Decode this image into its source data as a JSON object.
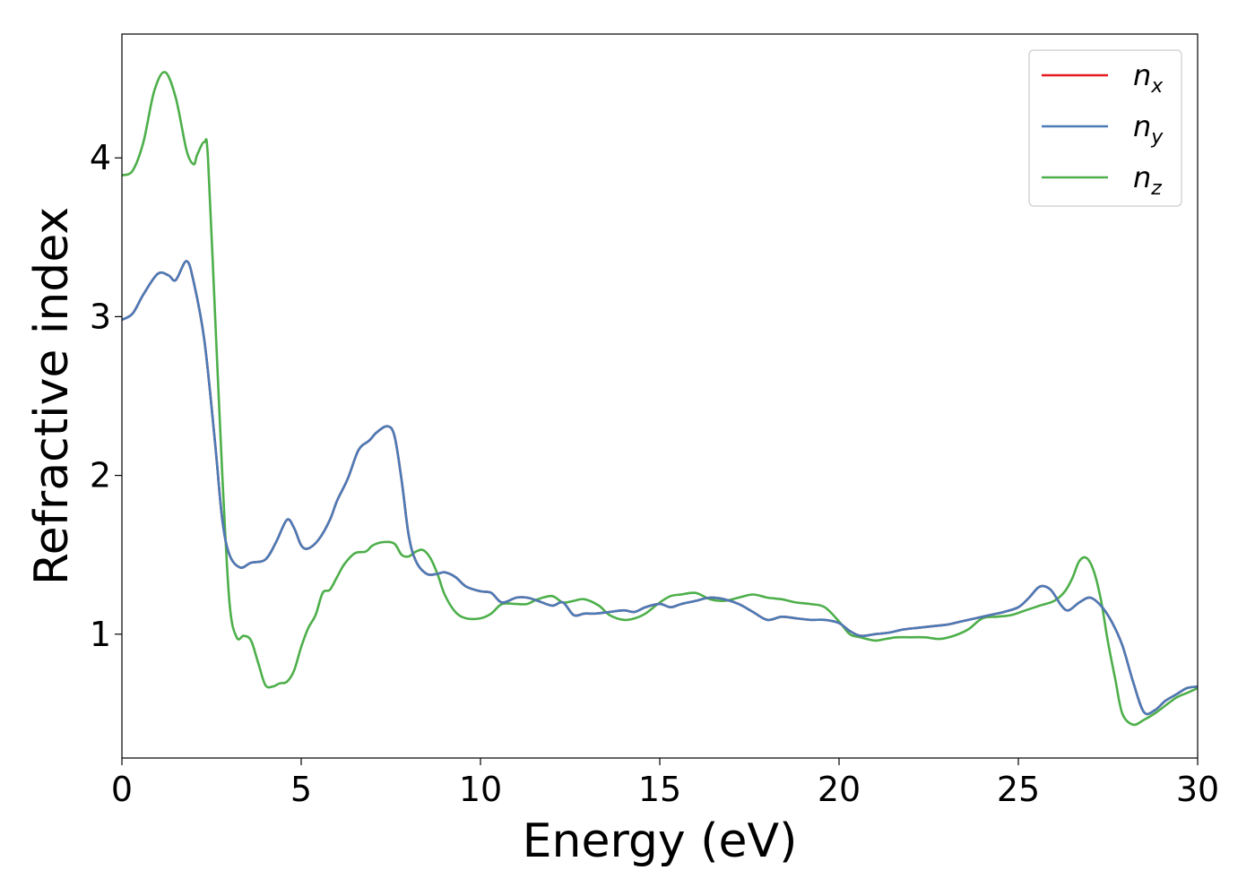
{
  "chart_data": {
    "type": "line",
    "xlabel": "Energy (eV)",
    "ylabel": "Refractive index",
    "xlim": [
      0,
      30
    ],
    "ylim": [
      0.22,
      4.78
    ],
    "xticks": [
      0,
      5,
      10,
      15,
      20,
      25,
      30
    ],
    "yticks": [
      1,
      2,
      3,
      4
    ],
    "grid": false,
    "legend_position": "top-right",
    "series": [
      {
        "name": "n_x",
        "label_main": "n",
        "label_sub": "x",
        "color": "#e41a1c",
        "x": [
          0,
          0.3,
          0.6,
          1.0,
          1.3,
          1.5,
          1.8,
          2.0,
          2.3,
          2.6,
          2.8,
          3.0,
          3.3,
          3.6,
          4.0,
          4.3,
          4.6,
          4.8,
          5.0,
          5.2,
          5.5,
          5.8,
          6.0,
          6.3,
          6.6,
          6.9,
          7.1,
          7.4,
          7.6,
          7.8,
          8.0,
          8.2,
          8.5,
          8.8,
          9.0,
          9.3,
          9.6,
          10.0,
          10.3,
          10.6,
          11.0,
          11.3,
          11.6,
          12.0,
          12.3,
          12.6,
          12.9,
          13.2,
          13.6,
          14.0,
          14.3,
          14.6,
          15.0,
          15.3,
          15.6,
          16.0,
          16.4,
          16.8,
          17.2,
          17.6,
          18.0,
          18.4,
          18.8,
          19.2,
          19.6,
          20.0,
          20.3,
          20.6,
          21.0,
          21.4,
          21.8,
          22.2,
          22.6,
          23.0,
          23.4,
          23.8,
          24.2,
          24.6,
          25.0,
          25.3,
          25.6,
          25.9,
          26.2,
          26.4,
          26.7,
          27.0,
          27.3,
          27.6,
          27.9,
          28.2,
          28.5,
          28.8,
          29.1,
          29.4,
          29.7,
          30.0
        ],
        "y": [
          2.98,
          3.02,
          3.14,
          3.27,
          3.26,
          3.23,
          3.35,
          3.22,
          2.85,
          2.2,
          1.72,
          1.5,
          1.42,
          1.45,
          1.47,
          1.58,
          1.72,
          1.67,
          1.56,
          1.54,
          1.6,
          1.72,
          1.84,
          1.98,
          2.16,
          2.22,
          2.27,
          2.31,
          2.25,
          1.97,
          1.62,
          1.46,
          1.38,
          1.38,
          1.39,
          1.36,
          1.3,
          1.27,
          1.26,
          1.2,
          1.23,
          1.23,
          1.21,
          1.18,
          1.2,
          1.12,
          1.13,
          1.13,
          1.14,
          1.15,
          1.14,
          1.17,
          1.19,
          1.17,
          1.19,
          1.21,
          1.23,
          1.22,
          1.19,
          1.14,
          1.09,
          1.11,
          1.1,
          1.09,
          1.09,
          1.07,
          1.02,
          0.99,
          1.0,
          1.01,
          1.03,
          1.04,
          1.05,
          1.06,
          1.08,
          1.1,
          1.12,
          1.14,
          1.17,
          1.23,
          1.3,
          1.28,
          1.18,
          1.15,
          1.2,
          1.23,
          1.18,
          1.08,
          0.93,
          0.7,
          0.51,
          0.52,
          0.58,
          0.62,
          0.66,
          0.67
        ]
      },
      {
        "name": "n_y",
        "label_main": "n",
        "label_sub": "y",
        "color": "#4a7bb7",
        "x": [
          0,
          0.3,
          0.6,
          1.0,
          1.3,
          1.5,
          1.8,
          2.0,
          2.3,
          2.6,
          2.8,
          3.0,
          3.3,
          3.6,
          4.0,
          4.3,
          4.6,
          4.8,
          5.0,
          5.2,
          5.5,
          5.8,
          6.0,
          6.3,
          6.6,
          6.9,
          7.1,
          7.4,
          7.6,
          7.8,
          8.0,
          8.2,
          8.5,
          8.8,
          9.0,
          9.3,
          9.6,
          10.0,
          10.3,
          10.6,
          11.0,
          11.3,
          11.6,
          12.0,
          12.3,
          12.6,
          12.9,
          13.2,
          13.6,
          14.0,
          14.3,
          14.6,
          15.0,
          15.3,
          15.6,
          16.0,
          16.4,
          16.8,
          17.2,
          17.6,
          18.0,
          18.4,
          18.8,
          19.2,
          19.6,
          20.0,
          20.3,
          20.6,
          21.0,
          21.4,
          21.8,
          22.2,
          22.6,
          23.0,
          23.4,
          23.8,
          24.2,
          24.6,
          25.0,
          25.3,
          25.6,
          25.9,
          26.2,
          26.4,
          26.7,
          27.0,
          27.3,
          27.6,
          27.9,
          28.2,
          28.5,
          28.8,
          29.1,
          29.4,
          29.7,
          30.0
        ],
        "y": [
          2.98,
          3.02,
          3.14,
          3.27,
          3.26,
          3.23,
          3.35,
          3.22,
          2.85,
          2.2,
          1.72,
          1.5,
          1.42,
          1.45,
          1.47,
          1.58,
          1.72,
          1.67,
          1.56,
          1.54,
          1.6,
          1.72,
          1.84,
          1.98,
          2.16,
          2.22,
          2.27,
          2.31,
          2.25,
          1.97,
          1.62,
          1.46,
          1.38,
          1.38,
          1.39,
          1.36,
          1.3,
          1.27,
          1.26,
          1.2,
          1.23,
          1.23,
          1.21,
          1.18,
          1.2,
          1.12,
          1.13,
          1.13,
          1.14,
          1.15,
          1.14,
          1.17,
          1.19,
          1.17,
          1.19,
          1.21,
          1.23,
          1.22,
          1.19,
          1.14,
          1.09,
          1.11,
          1.1,
          1.09,
          1.09,
          1.07,
          1.02,
          0.99,
          1.0,
          1.01,
          1.03,
          1.04,
          1.05,
          1.06,
          1.08,
          1.1,
          1.12,
          1.14,
          1.17,
          1.23,
          1.3,
          1.28,
          1.18,
          1.15,
          1.2,
          1.23,
          1.18,
          1.08,
          0.93,
          0.7,
          0.51,
          0.52,
          0.58,
          0.62,
          0.66,
          0.67
        ]
      },
      {
        "name": "n_z",
        "label_main": "n",
        "label_sub": "z",
        "color": "#4daf4a",
        "x": [
          0,
          0.3,
          0.6,
          0.9,
          1.2,
          1.5,
          1.8,
          2.0,
          2.1,
          2.3,
          2.4,
          2.6,
          2.8,
          3.0,
          3.2,
          3.4,
          3.6,
          3.8,
          4.0,
          4.2,
          4.4,
          4.6,
          4.8,
          5.0,
          5.2,
          5.4,
          5.6,
          5.8,
          6.0,
          6.2,
          6.5,
          6.8,
          7.0,
          7.3,
          7.6,
          7.8,
          8.0,
          8.2,
          8.4,
          8.6,
          8.8,
          9.0,
          9.3,
          9.6,
          10.0,
          10.3,
          10.6,
          11.0,
          11.3,
          11.6,
          12.0,
          12.3,
          12.6,
          12.9,
          13.3,
          13.6,
          14.0,
          14.3,
          14.6,
          15.0,
          15.3,
          15.6,
          16.0,
          16.4,
          16.8,
          17.2,
          17.6,
          18.0,
          18.4,
          18.8,
          19.2,
          19.6,
          20.0,
          20.3,
          20.6,
          21.0,
          21.3,
          21.6,
          22.0,
          22.4,
          22.8,
          23.2,
          23.6,
          24.0,
          24.4,
          24.8,
          25.2,
          25.6,
          26.0,
          26.3,
          26.5,
          26.7,
          26.9,
          27.1,
          27.3,
          27.5,
          27.7,
          27.9,
          28.2,
          28.5,
          28.8,
          29.1,
          29.4,
          29.7,
          30.0
        ],
        "y": [
          3.89,
          3.92,
          4.1,
          4.42,
          4.54,
          4.38,
          4.05,
          3.96,
          4.02,
          4.1,
          4.0,
          3.0,
          2.0,
          1.2,
          0.98,
          0.99,
          0.96,
          0.82,
          0.68,
          0.67,
          0.69,
          0.7,
          0.77,
          0.92,
          1.04,
          1.12,
          1.26,
          1.28,
          1.36,
          1.44,
          1.51,
          1.52,
          1.56,
          1.58,
          1.57,
          1.5,
          1.49,
          1.52,
          1.53,
          1.48,
          1.38,
          1.25,
          1.14,
          1.1,
          1.1,
          1.13,
          1.19,
          1.19,
          1.19,
          1.22,
          1.24,
          1.2,
          1.21,
          1.22,
          1.18,
          1.12,
          1.09,
          1.1,
          1.13,
          1.2,
          1.24,
          1.25,
          1.26,
          1.22,
          1.21,
          1.23,
          1.25,
          1.23,
          1.22,
          1.2,
          1.19,
          1.17,
          1.08,
          1.0,
          0.98,
          0.96,
          0.97,
          0.98,
          0.98,
          0.98,
          0.97,
          0.99,
          1.03,
          1.1,
          1.11,
          1.12,
          1.15,
          1.18,
          1.21,
          1.27,
          1.35,
          1.46,
          1.48,
          1.4,
          1.22,
          0.95,
          0.72,
          0.5,
          0.43,
          0.46,
          0.5,
          0.55,
          0.6,
          0.63,
          0.66
        ]
      }
    ]
  }
}
